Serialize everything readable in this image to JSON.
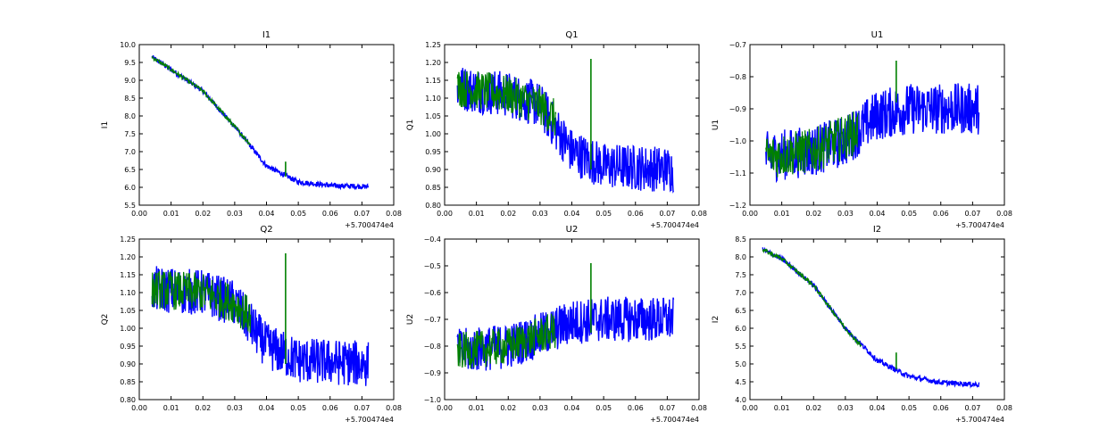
{
  "colors": {
    "series_a": "#0000ff",
    "series_b": "#008000",
    "axes": "#000000",
    "background": "#ffffff"
  },
  "chart_data": [
    {
      "type": "line",
      "title": "I1",
      "ylabel": "I1",
      "xlabel": "",
      "x_offset_label": "+5.700474e4",
      "xlim": [
        0.0,
        0.08
      ],
      "ylim": [
        5.5,
        10.0
      ],
      "xticks": [
        "0.00",
        "0.01",
        "0.02",
        "0.03",
        "0.04",
        "0.05",
        "0.06",
        "0.07",
        "0.08"
      ],
      "yticks": [
        "5.5",
        "6.0",
        "6.5",
        "7.0",
        "7.5",
        "8.0",
        "8.5",
        "9.0",
        "9.5",
        "10.0"
      ],
      "grid": false,
      "legend": "none",
      "x_range_data": [
        0.004,
        0.072
      ],
      "series": [
        {
          "color": "#0000ff",
          "noise": 0.07,
          "points": [
            [
              0.004,
              9.65
            ],
            [
              0.01,
              9.3
            ],
            [
              0.02,
              8.7
            ],
            [
              0.03,
              7.7
            ],
            [
              0.04,
              6.6
            ],
            [
              0.05,
              6.15
            ],
            [
              0.06,
              6.05
            ],
            [
              0.072,
              6.02
            ]
          ]
        },
        {
          "color": "#008000",
          "noise": 0.06,
          "x_end": 0.035,
          "points": [
            [
              0.004,
              9.65
            ],
            [
              0.01,
              9.3
            ],
            [
              0.02,
              8.7
            ],
            [
              0.03,
              7.7
            ],
            [
              0.035,
              7.2
            ]
          ],
          "spike": [
            0.046,
            6.3,
            6.72
          ]
        }
      ]
    },
    {
      "type": "line",
      "title": "Q1",
      "ylabel": "Q1",
      "xlabel": "",
      "x_offset_label": "+5.700474e4",
      "xlim": [
        0.0,
        0.08
      ],
      "ylim": [
        0.8,
        1.25
      ],
      "xticks": [
        "0.00",
        "0.01",
        "0.02",
        "0.03",
        "0.04",
        "0.05",
        "0.06",
        "0.07",
        "0.08"
      ],
      "yticks": [
        "0.80",
        "0.85",
        "0.90",
        "0.95",
        "1.00",
        "1.05",
        "1.10",
        "1.15",
        "1.20",
        "1.25"
      ],
      "grid": false,
      "legend": "none",
      "x_range_data": [
        0.004,
        0.072
      ],
      "series": [
        {
          "color": "#0000ff",
          "noise": 0.065,
          "points": [
            [
              0.004,
              1.13
            ],
            [
              0.02,
              1.11
            ],
            [
              0.03,
              1.08
            ],
            [
              0.04,
              0.95
            ],
            [
              0.05,
              0.91
            ],
            [
              0.072,
              0.9
            ]
          ]
        },
        {
          "color": "#008000",
          "noise": 0.055,
          "x_end": 0.035,
          "points": [
            [
              0.004,
              1.13
            ],
            [
              0.02,
              1.11
            ],
            [
              0.03,
              1.08
            ],
            [
              0.035,
              1.04
            ]
          ],
          "spike": [
            0.046,
            0.9,
            1.21
          ]
        }
      ]
    },
    {
      "type": "line",
      "title": "U1",
      "ylabel": "U1",
      "xlabel": "",
      "x_offset_label": "+5.700474e4",
      "xlim": [
        0.0,
        0.08
      ],
      "ylim": [
        -1.2,
        -0.7
      ],
      "xticks": [
        "0.00",
        "0.01",
        "0.02",
        "0.03",
        "0.04",
        "0.05",
        "0.06",
        "0.07",
        "0.08"
      ],
      "yticks": [
        "−1.2",
        "−1.1",
        "−1.0",
        "−0.9",
        "−0.8",
        "−0.7"
      ],
      "grid": false,
      "legend": "none",
      "x_range_data": [
        0.005,
        0.072
      ],
      "series": [
        {
          "color": "#0000ff",
          "noise": 0.08,
          "points": [
            [
              0.005,
              -1.05
            ],
            [
              0.02,
              -1.03
            ],
            [
              0.03,
              -1.0
            ],
            [
              0.04,
              -0.92
            ],
            [
              0.05,
              -0.9
            ],
            [
              0.072,
              -0.9
            ]
          ]
        },
        {
          "color": "#008000",
          "noise": 0.07,
          "x_end": 0.034,
          "points": [
            [
              0.005,
              -1.05
            ],
            [
              0.02,
              -1.03
            ],
            [
              0.034,
              -0.97
            ]
          ],
          "spike": [
            0.046,
            -0.88,
            -0.75
          ]
        }
      ]
    },
    {
      "type": "line",
      "title": "Q2",
      "ylabel": "Q2",
      "xlabel": "",
      "x_offset_label": "+5.700474e4",
      "xlim": [
        0.0,
        0.08
      ],
      "ylim": [
        0.8,
        1.25
      ],
      "xticks": [
        "0.00",
        "0.01",
        "0.02",
        "0.03",
        "0.04",
        "0.05",
        "0.06",
        "0.07",
        "0.08"
      ],
      "yticks": [
        "0.80",
        "0.85",
        "0.90",
        "0.95",
        "1.00",
        "1.05",
        "1.10",
        "1.15",
        "1.20",
        "1.25"
      ],
      "grid": false,
      "legend": "none",
      "x_range_data": [
        0.004,
        0.072
      ],
      "series": [
        {
          "color": "#0000ff",
          "noise": 0.065,
          "points": [
            [
              0.004,
              1.11
            ],
            [
              0.02,
              1.1
            ],
            [
              0.03,
              1.07
            ],
            [
              0.04,
              0.95
            ],
            [
              0.05,
              0.91
            ],
            [
              0.072,
              0.9
            ]
          ]
        },
        {
          "color": "#008000",
          "noise": 0.055,
          "x_end": 0.035,
          "points": [
            [
              0.004,
              1.11
            ],
            [
              0.02,
              1.1
            ],
            [
              0.03,
              1.07
            ],
            [
              0.035,
              1.03
            ]
          ],
          "spike": [
            0.046,
            0.9,
            1.21
          ]
        }
      ]
    },
    {
      "type": "line",
      "title": "U2",
      "ylabel": "U2",
      "xlabel": "",
      "x_offset_label": "+5.700474e4",
      "xlim": [
        0.0,
        0.08
      ],
      "ylim": [
        -1.0,
        -0.4
      ],
      "xticks": [
        "0.00",
        "0.01",
        "0.02",
        "0.03",
        "0.04",
        "0.05",
        "0.06",
        "0.07",
        "0.08"
      ],
      "yticks": [
        "−1.0",
        "−0.9",
        "−0.8",
        "−0.7",
        "−0.6",
        "−0.5",
        "−0.4"
      ],
      "grid": false,
      "legend": "none",
      "x_range_data": [
        0.004,
        0.072
      ],
      "series": [
        {
          "color": "#0000ff",
          "noise": 0.085,
          "points": [
            [
              0.004,
              -0.82
            ],
            [
              0.02,
              -0.8
            ],
            [
              0.03,
              -0.76
            ],
            [
              0.04,
              -0.71
            ],
            [
              0.05,
              -0.7
            ],
            [
              0.072,
              -0.7
            ]
          ]
        },
        {
          "color": "#008000",
          "noise": 0.07,
          "x_end": 0.035,
          "points": [
            [
              0.004,
              -0.82
            ],
            [
              0.02,
              -0.8
            ],
            [
              0.035,
              -0.74
            ]
          ],
          "spike": [
            0.046,
            -0.75,
            -0.49
          ]
        }
      ]
    },
    {
      "type": "line",
      "title": "I2",
      "ylabel": "I2",
      "xlabel": "",
      "x_offset_label": "+5.700474e4",
      "xlim": [
        0.0,
        0.08
      ],
      "ylim": [
        4.0,
        8.5
      ],
      "xticks": [
        "0.00",
        "0.01",
        "0.02",
        "0.03",
        "0.04",
        "0.05",
        "0.06",
        "0.07",
        "0.08"
      ],
      "yticks": [
        "4.0",
        "4.5",
        "5.0",
        "5.5",
        "6.0",
        "6.5",
        "7.0",
        "7.5",
        "8.0",
        "8.5"
      ],
      "grid": false,
      "legend": "none",
      "x_range_data": [
        0.004,
        0.072
      ],
      "series": [
        {
          "color": "#0000ff",
          "noise": 0.07,
          "points": [
            [
              0.004,
              8.2
            ],
            [
              0.01,
              7.95
            ],
            [
              0.02,
              7.2
            ],
            [
              0.03,
              6.0
            ],
            [
              0.04,
              5.1
            ],
            [
              0.05,
              4.65
            ],
            [
              0.06,
              4.48
            ],
            [
              0.072,
              4.42
            ]
          ]
        },
        {
          "color": "#008000",
          "noise": 0.06,
          "x_end": 0.035,
          "points": [
            [
              0.004,
              8.2
            ],
            [
              0.01,
              7.95
            ],
            [
              0.02,
              7.2
            ],
            [
              0.03,
              6.0
            ],
            [
              0.035,
              5.5
            ]
          ],
          "spike": [
            0.046,
            4.85,
            5.32
          ]
        }
      ]
    }
  ]
}
